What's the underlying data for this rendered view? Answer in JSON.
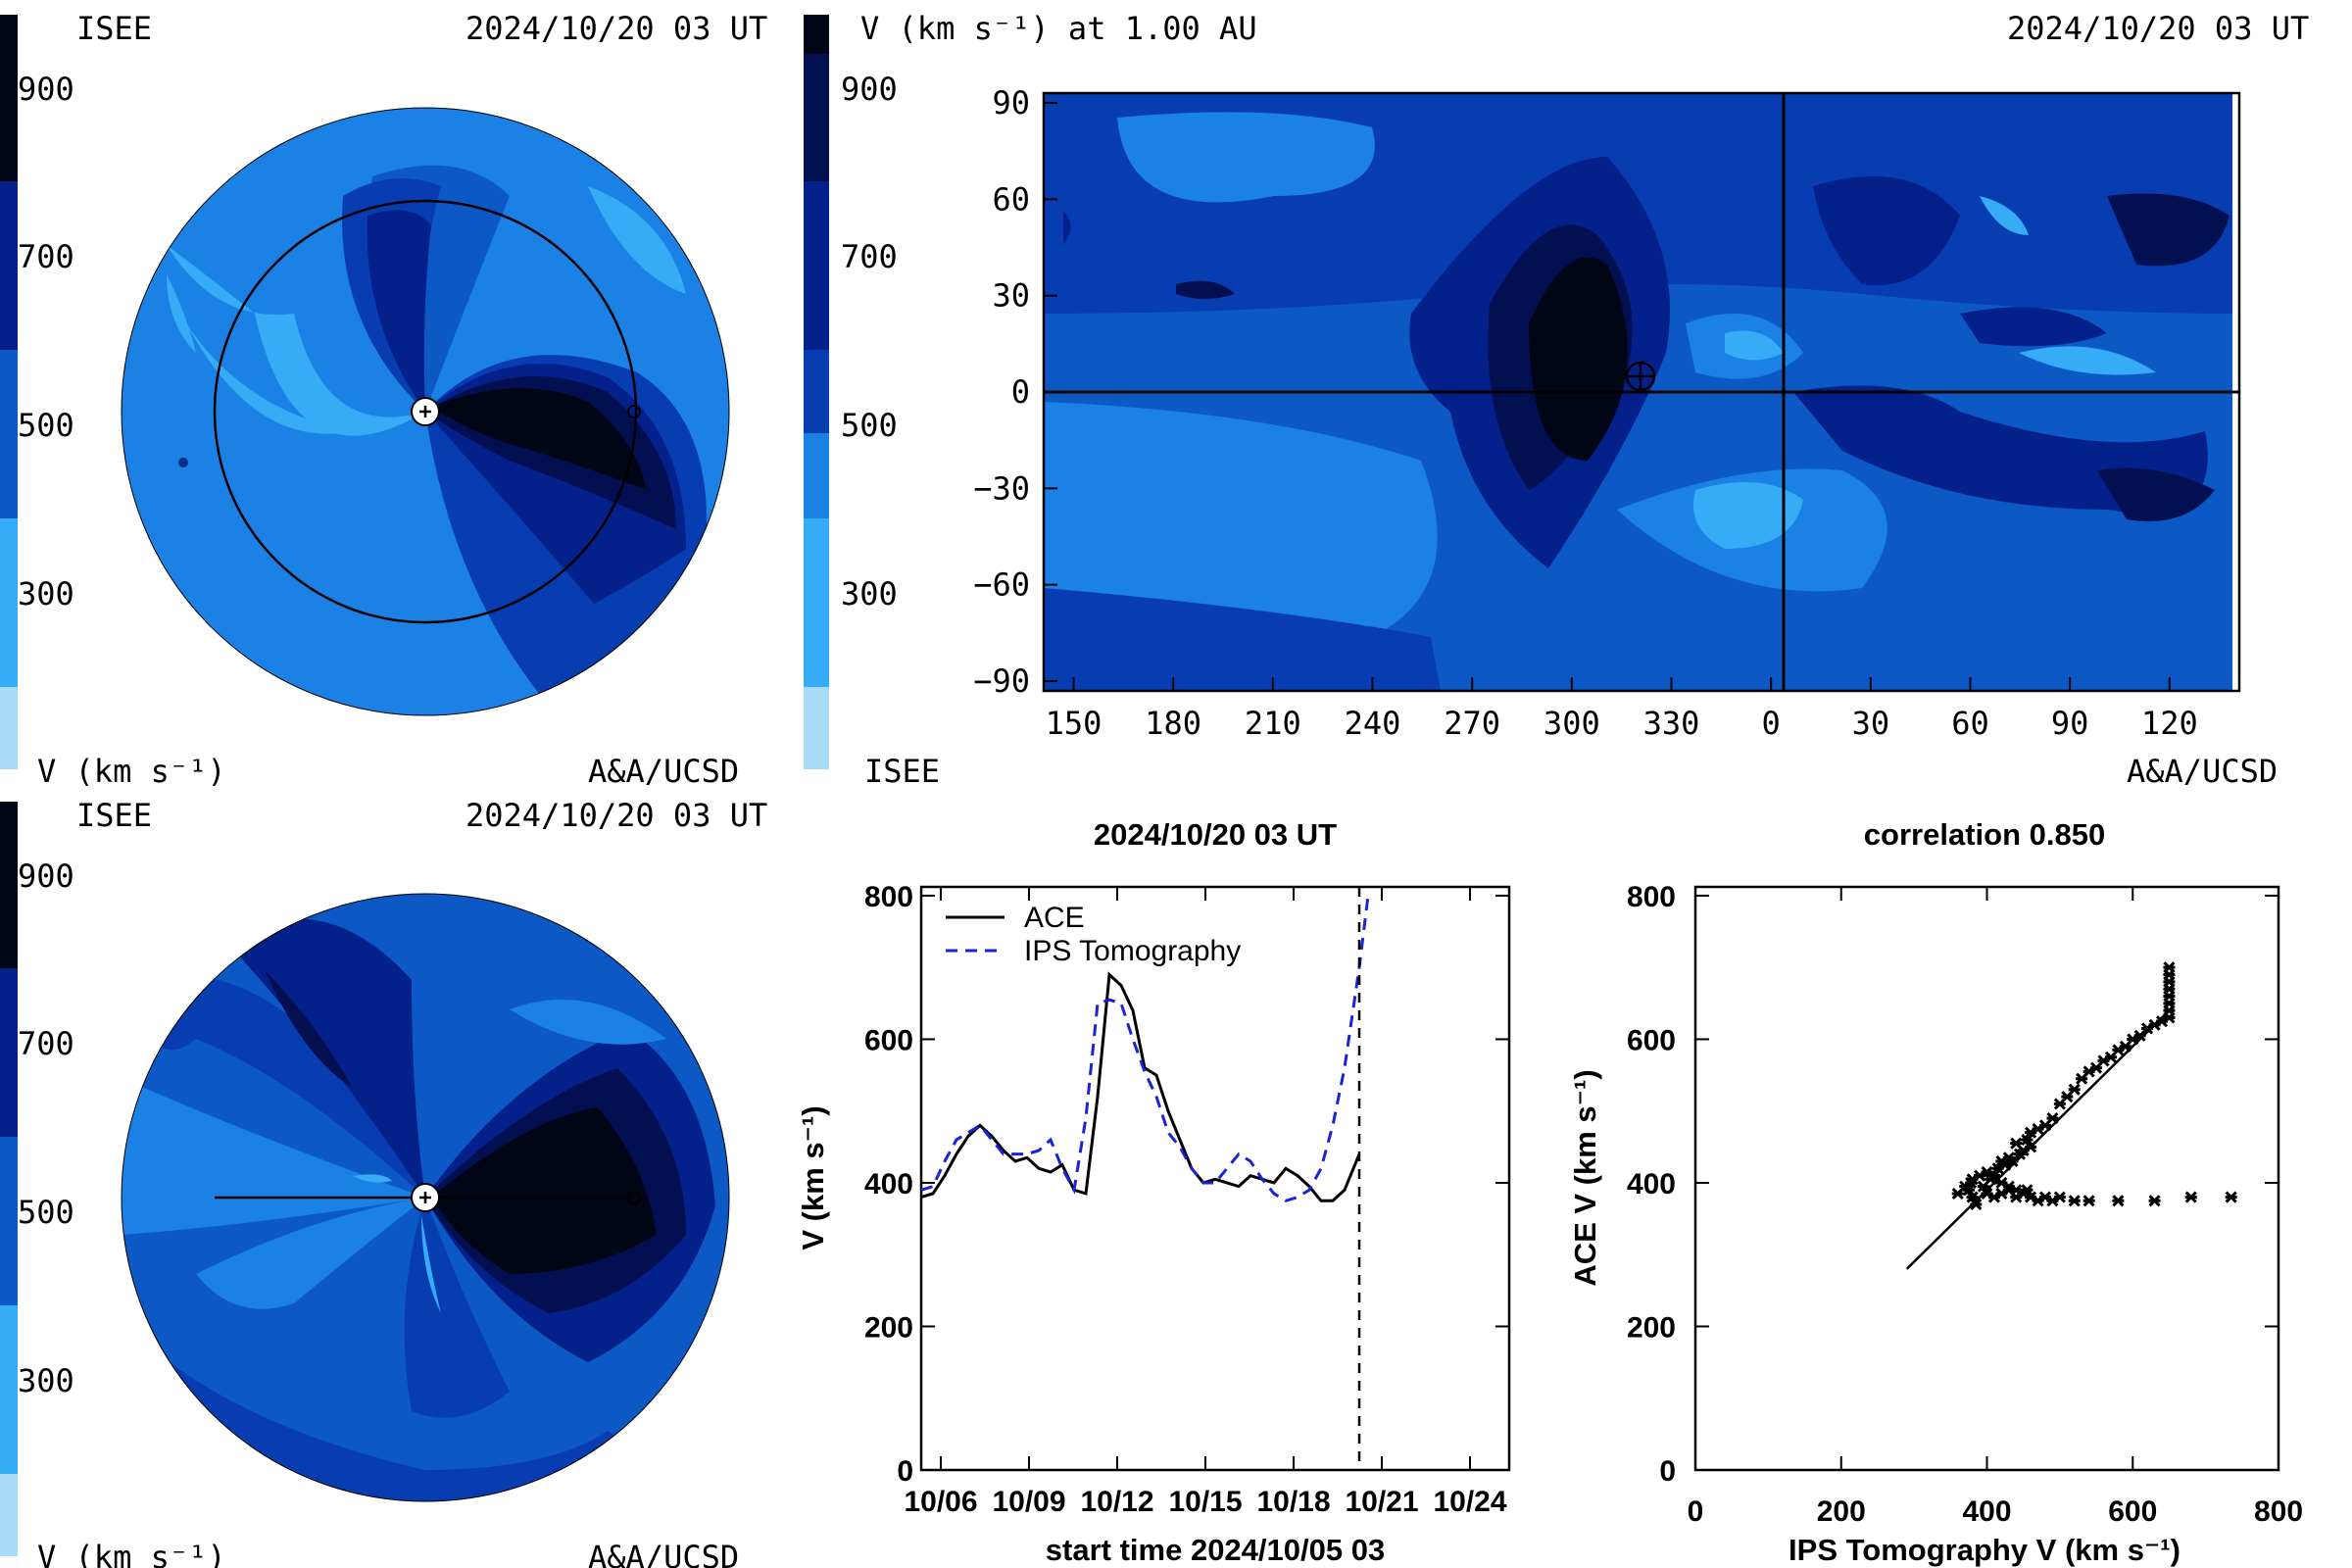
{
  "colors": {
    "level_250": "#a8daf5",
    "level_300": "#36acf7",
    "level_400": "#1c81e4",
    "level_500": "#0c59c6",
    "level_600": "#073db0",
    "level_700": "#04208a",
    "level_800": "#021052",
    "level_900": "#000616",
    "ace_line": "#000000",
    "ips_line": "#1a23d6"
  },
  "colorbar": {
    "ticks": [
      {
        "value": 900,
        "label": "900"
      },
      {
        "value": 700,
        "label": "700"
      },
      {
        "value": 500,
        "label": "500"
      },
      {
        "value": 300,
        "label": "300"
      }
    ],
    "unit_label": "V (km s⁻¹)"
  },
  "panel_top_left": {
    "source": "ISEE",
    "timestamp": "2024/10/20 03 UT",
    "credit": "A&A/UCSD"
  },
  "panel_top_right": {
    "title": "V (km s⁻¹) at 1.00 AU",
    "timestamp": "2024/10/20 03 UT",
    "source": "ISEE",
    "credit": "A&A/UCSD",
    "x_ticks": [
      "150",
      "180",
      "210",
      "240",
      "270",
      "300",
      "330",
      "0",
      "30",
      "60",
      "90",
      "120"
    ],
    "y_ticks": [
      "90",
      "60",
      "30",
      "0",
      "−30",
      "−60",
      "−90"
    ]
  },
  "panel_bottom_left": {
    "source": "ISEE",
    "timestamp": "2024/10/20 03 UT",
    "credit": "A&A/UCSD"
  },
  "chart_data": [
    {
      "type": "line",
      "title": "2024/10/20 03 UT",
      "xlabel": "start time 2024/10/05 03",
      "ylabel": "V (km s⁻¹)",
      "ylim": [
        0,
        800
      ],
      "xlim": [
        0,
        20
      ],
      "x_tick_labels": [
        "10/06",
        "10/09",
        "10/12",
        "10/15",
        "10/18",
        "10/21",
        "10/24"
      ],
      "y_tick_labels": [
        "0",
        "200",
        "400",
        "600",
        "800"
      ],
      "current_time_marker_x": 14.9,
      "series": [
        {
          "name": "ACE",
          "x": [
            0,
            0.4,
            0.8,
            1.2,
            1.6,
            2.0,
            2.4,
            2.8,
            3.2,
            3.6,
            4.0,
            4.4,
            4.8,
            5.2,
            5.6,
            6.0,
            6.4,
            6.8,
            7.2,
            7.6,
            8.0,
            8.4,
            8.8,
            9.2,
            9.6,
            10.0,
            10.4,
            10.8,
            11.2,
            11.6,
            12.0,
            12.4,
            12.8,
            13.2,
            13.6,
            14.0,
            14.4,
            14.9
          ],
          "values": [
            380,
            385,
            410,
            440,
            465,
            480,
            465,
            445,
            430,
            435,
            420,
            415,
            425,
            390,
            385,
            520,
            690,
            675,
            640,
            560,
            550,
            500,
            460,
            420,
            400,
            405,
            400,
            395,
            410,
            405,
            400,
            420,
            410,
            395,
            375,
            375,
            390,
            440
          ]
        },
        {
          "name": "IPS Tomography",
          "x": [
            0,
            0.4,
            0.8,
            1.2,
            1.6,
            2.0,
            2.4,
            2.8,
            3.2,
            3.6,
            4.0,
            4.4,
            4.8,
            5.2,
            5.6,
            6.0,
            6.4,
            6.8,
            7.2,
            7.6,
            8.0,
            8.4,
            8.8,
            9.2,
            9.6,
            10.0,
            10.4,
            10.8,
            11.2,
            11.6,
            12.0,
            12.4,
            12.8,
            13.2,
            13.6,
            14.0,
            14.4,
            14.9,
            15.2
          ],
          "values": [
            390,
            395,
            430,
            460,
            470,
            480,
            460,
            440,
            440,
            440,
            445,
            460,
            420,
            390,
            490,
            650,
            655,
            650,
            600,
            555,
            520,
            470,
            450,
            420,
            400,
            400,
            420,
            440,
            430,
            405,
            385,
            375,
            380,
            390,
            420,
            480,
            560,
            700,
            800
          ]
        }
      ],
      "legend": "top-left"
    },
    {
      "type": "scatter",
      "title": "correlation 0.850",
      "xlabel": "IPS Tomography V (km s⁻¹)",
      "ylabel": "ACE V (km s⁻¹)",
      "xlim": [
        0,
        800
      ],
      "ylim": [
        0,
        800
      ],
      "x_tick_labels": [
        "0",
        "200",
        "400",
        "600",
        "800"
      ],
      "y_tick_labels": [
        "0",
        "200",
        "400",
        "600",
        "800"
      ],
      "points": [
        [
          385,
          370
        ],
        [
          380,
          380
        ],
        [
          375,
          390
        ],
        [
          378,
          400
        ],
        [
          390,
          410
        ],
        [
          400,
          415
        ],
        [
          410,
          410
        ],
        [
          420,
          400
        ],
        [
          430,
          395
        ],
        [
          440,
          390
        ],
        [
          400,
          385
        ],
        [
          410,
          380
        ],
        [
          420,
          385
        ],
        [
          430,
          390
        ],
        [
          395,
          395
        ],
        [
          405,
          405
        ],
        [
          415,
          420
        ],
        [
          425,
          425
        ],
        [
          435,
          430
        ],
        [
          445,
          440
        ],
        [
          450,
          445
        ],
        [
          440,
          455
        ],
        [
          455,
          460
        ],
        [
          460,
          470
        ],
        [
          470,
          475
        ],
        [
          480,
          480
        ],
        [
          490,
          490
        ],
        [
          500,
          510
        ],
        [
          510,
          520
        ],
        [
          520,
          530
        ],
        [
          530,
          545
        ],
        [
          540,
          555
        ],
        [
          550,
          560
        ],
        [
          560,
          570
        ],
        [
          570,
          575
        ],
        [
          580,
          585
        ],
        [
          590,
          590
        ],
        [
          600,
          600
        ],
        [
          610,
          605
        ],
        [
          620,
          615
        ],
        [
          630,
          620
        ],
        [
          640,
          625
        ],
        [
          650,
          630
        ],
        [
          650,
          640
        ],
        [
          650,
          650
        ],
        [
          650,
          660
        ],
        [
          650,
          670
        ],
        [
          650,
          680
        ],
        [
          650,
          690
        ],
        [
          650,
          700
        ],
        [
          440,
          380
        ],
        [
          450,
          385
        ],
        [
          455,
          390
        ],
        [
          460,
          380
        ],
        [
          470,
          375
        ],
        [
          480,
          380
        ],
        [
          490,
          375
        ],
        [
          500,
          380
        ],
        [
          520,
          375
        ],
        [
          540,
          375
        ],
        [
          580,
          375
        ],
        [
          630,
          375
        ],
        [
          680,
          380
        ],
        [
          735,
          380
        ],
        [
          360,
          385
        ],
        [
          370,
          395
        ],
        [
          380,
          405
        ],
        [
          420,
          430
        ],
        [
          430,
          435
        ],
        [
          460,
          450
        ]
      ],
      "fit_line": {
        "x": [
          290,
          650
        ],
        "y": [
          280,
          640
        ]
      }
    }
  ]
}
